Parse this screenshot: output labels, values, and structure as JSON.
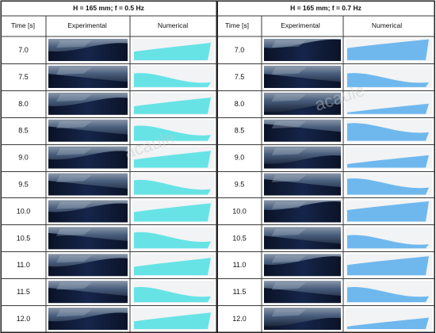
{
  "panels": [
    {
      "title": "H = 165 mm; f = 0.5 Hz",
      "time_header": "Time [s]",
      "exp_header": "Experimental",
      "num_header": "Numerical",
      "fluid_color": "#67e3e6",
      "times": [
        "7.0",
        "7.5",
        "8.0",
        "8.5",
        "9.0",
        "9.5",
        "10.0",
        "10.5",
        "11.0",
        "11.5",
        "12.0"
      ],
      "free_surface_levels": [
        0.62,
        0.45,
        0.58,
        0.5,
        0.6,
        0.48,
        0.66,
        0.55,
        0.62,
        0.5,
        0.58
      ]
    },
    {
      "title": "H = 165 mm; f = 0.7 Hz",
      "time_header": "Time [s]",
      "exp_header": "Experimental",
      "num_header": "Numerical",
      "fluid_color": "#6fb8ee",
      "times": [
        "7.0",
        "7.5",
        "8.0",
        "8.5",
        "9.0",
        "9.5",
        "10.0",
        "10.5",
        "11.0",
        "11.5",
        "12.0"
      ],
      "free_surface_levels": [
        0.78,
        0.45,
        0.3,
        0.62,
        0.4,
        0.55,
        0.75,
        0.42,
        0.7,
        0.5,
        0.35
      ]
    }
  ],
  "watermark": "acaule",
  "colors": {
    "experimental_dark": "#0f1a2e",
    "experimental_light": "#6c7f98",
    "line": "#3a3a3a"
  }
}
